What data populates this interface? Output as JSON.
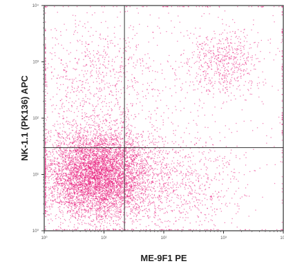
{
  "chart_data": {
    "type": "scatter",
    "plot": "flow-cytometry dot plot",
    "xlabel": "ME-9F1 PE",
    "ylabel": "NK-1.1 (PK136) APC",
    "xscale": "log",
    "yscale": "log",
    "xlim": [
      1,
      10000
    ],
    "ylim": [
      1,
      10000
    ],
    "x_ticks": [
      "10⁰",
      "10¹",
      "10²",
      "10³",
      "10⁴"
    ],
    "y_ticks": [
      "10⁰",
      "10¹",
      "10²",
      "10³",
      "10⁴"
    ],
    "quadrant_gate": {
      "x": 22,
      "y": 30
    },
    "grid": false,
    "legend": "none",
    "point_color": "#e8177a",
    "populations": [
      {
        "name": "main cluster",
        "x_center": 8,
        "y_center": 10,
        "spread_decades": 0.45,
        "share": 0.72
      },
      {
        "name": "upper-right cluster",
        "x_center": 1000,
        "y_center": 1000,
        "spread_decades": 0.3,
        "share": 0.06
      },
      {
        "name": "lower-right tail",
        "x_center": 200,
        "y_center": 6,
        "spread_decades": 0.5,
        "share": 0.08
      },
      {
        "name": "upper-left tail",
        "x_center": 6,
        "y_center": 500,
        "spread_decades": 0.6,
        "share": 0.08
      },
      {
        "name": "background",
        "x_center": 300,
        "y_center": 300,
        "spread_decades": 1.4,
        "share": 0.06
      }
    ],
    "total_events": 9000
  }
}
